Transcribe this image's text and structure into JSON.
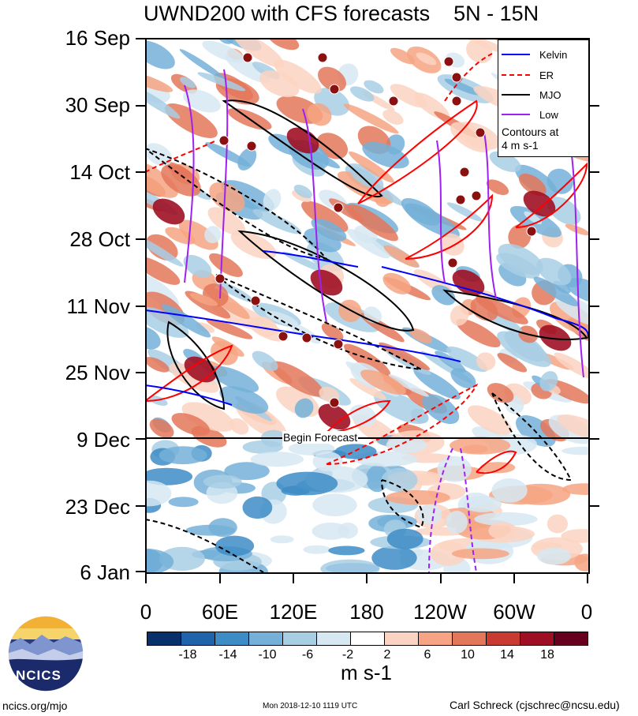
{
  "title": "UWND200 with CFS forecasts    5N - 15N",
  "chart_data": {
    "type": "heatmap",
    "title": "UWND200 with CFS forecasts",
    "subtitle": "5N - 15N",
    "x_ticks": [
      "0",
      "60E",
      "120E",
      "180",
      "120W",
      "60W",
      "0"
    ],
    "y_ticks": [
      "16 Sep",
      "30 Sep",
      "14 Oct",
      "28 Oct",
      "11 Nov",
      "25 Nov",
      "9 Dec",
      "23 Dec",
      "6 Jan"
    ],
    "forecast_label": "Begin Forecast",
    "legend": [
      {
        "name": "Kelvin",
        "color": "#0000ff",
        "dashed": false
      },
      {
        "name": "ER",
        "color": "#ff0000",
        "dashed": true
      },
      {
        "name": "MJO",
        "color": "#000000",
        "dashed": false
      },
      {
        "name": "Low",
        "color": "#a020f0",
        "dashed": false
      }
    ],
    "contour_note": [
      "Contours at",
      "4 m s-1"
    ],
    "colorbar": {
      "labels": [
        "-18",
        "-14",
        "-10",
        "-6",
        "-2",
        "2",
        "6",
        "10",
        "14",
        "18"
      ],
      "colors": [
        "#08306b",
        "#1f64aa",
        "#3d8cc6",
        "#74b0d8",
        "#a8cee4",
        "#d6e8f2",
        "#ffffff",
        "#fbd3c2",
        "#f6a483",
        "#e4775a",
        "#c93a32",
        "#9f0f23",
        "#67001f"
      ],
      "units": "m s-1"
    }
  },
  "footer": {
    "website": "ncics.org/mjo",
    "timestamp": "Mon 2018-12-10 1119 UTC",
    "author": "Carl Schreck (cjschrec@ncsu.edu)",
    "logo_text": "NCICS"
  }
}
